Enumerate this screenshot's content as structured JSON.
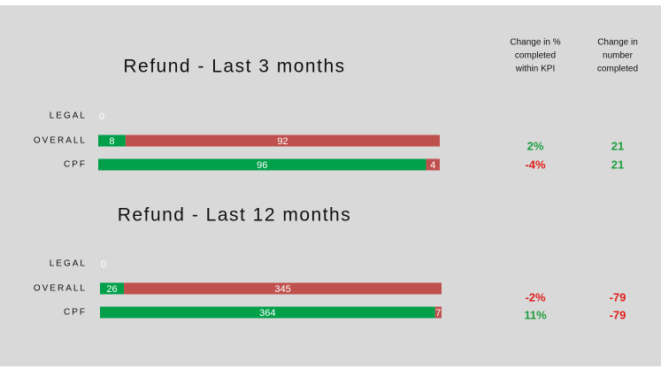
{
  "chart_data": [
    {
      "type": "bar",
      "orientation": "horizontal",
      "stacked": true,
      "title": "Refund - Last 3 months",
      "categories": [
        "LEGAL",
        "OVERALL",
        "CPF"
      ],
      "series": [
        {
          "color": "#00a04a",
          "values": [
            0,
            8,
            96
          ]
        },
        {
          "color": "#c0504d",
          "values": [
            null,
            92,
            4
          ]
        }
      ]
    },
    {
      "type": "bar",
      "orientation": "horizontal",
      "stacked": true,
      "title": "Refund - Last 12 months",
      "categories": [
        "LEGAL",
        "OVERALL",
        "CPF"
      ],
      "series": [
        {
          "color": "#00a04a",
          "values": [
            0,
            26,
            364
          ]
        },
        {
          "color": "#c0504d",
          "values": [
            null,
            345,
            7
          ]
        }
      ]
    }
  ],
  "kpi_table": {
    "headers": [
      [
        "Change in %",
        "completed",
        "within KPI"
      ],
      [
        "Change in",
        "number",
        "completed"
      ]
    ],
    "positive_color": "#1e9e3e",
    "negative_color": "#e0201b",
    "sections": [
      {
        "pct": {
          "values": [
            2,
            -4
          ],
          "value_labels": [
            "2%",
            "-4%"
          ]
        },
        "number": {
          "values": [
            21,
            21
          ]
        }
      },
      {
        "pct": {
          "values": [
            -2,
            11
          ],
          "value_labels": [
            "-2%",
            "11%"
          ]
        },
        "number": {
          "values": [
            -79,
            -79
          ]
        }
      }
    ]
  }
}
